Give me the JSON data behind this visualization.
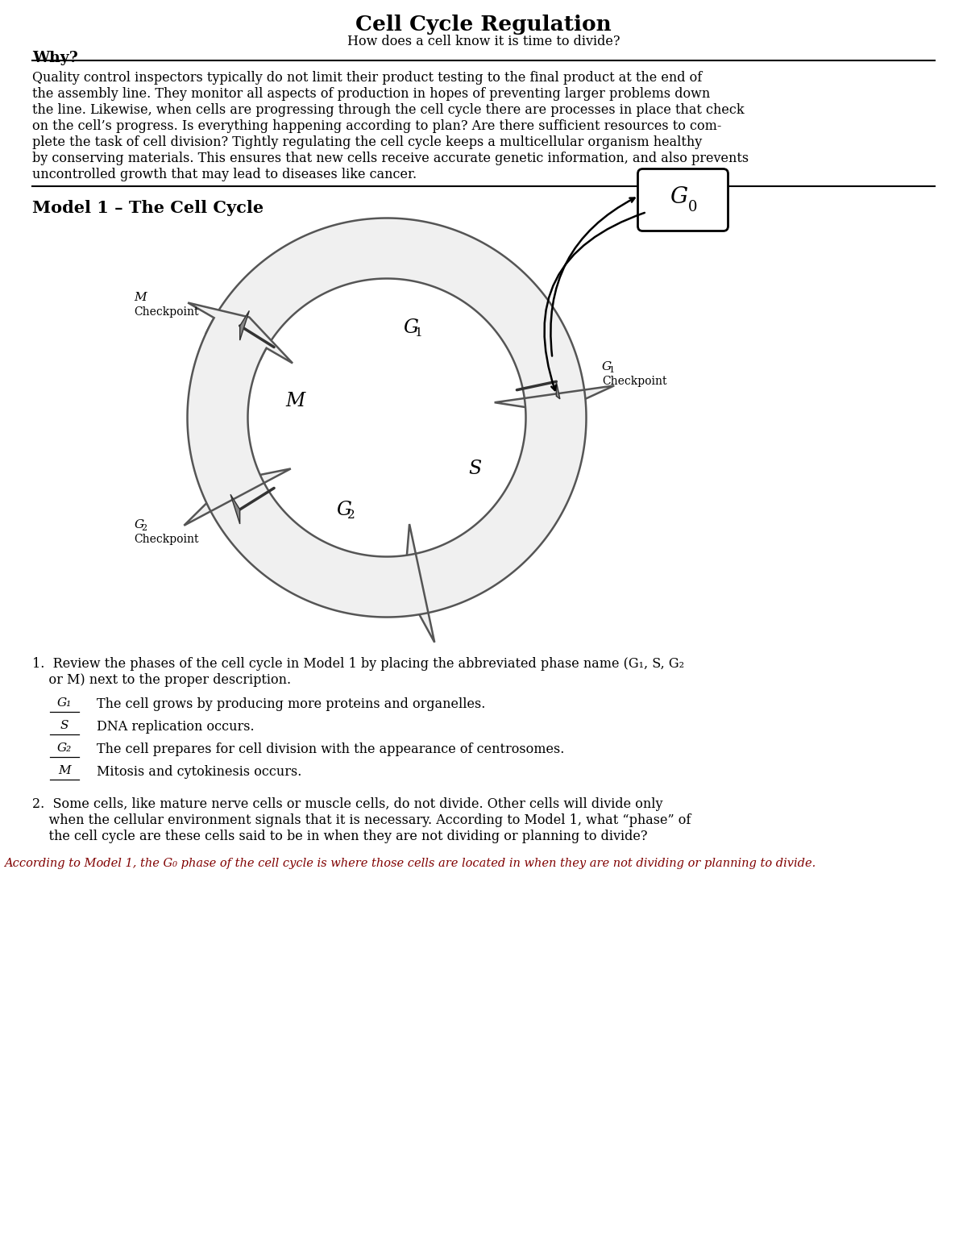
{
  "title": "Cell Cycle Regulation",
  "subtitle": "How does a cell know it is time to divide?",
  "why_label": "Why?",
  "why_text": "Quality control inspectors typically do not limit their product testing to the final product at the end of\nthe assembly line. They monitor all aspects of production in hopes of preventing larger problems down\nthe line. Likewise, when cells are progressing through the cell cycle there are processes in place that check\non the cell’s progress. Is everything happening according to plan? Are there sufficient resources to com-\nplete the task of cell division? Tightly regulating the cell cycle keeps a multicellular organism healthy\nby conserving materials. This ensures that new cells receive accurate genetic information, and also prevents\nuncontrolled growth that may lead to diseases like cancer.",
  "model_title": "Model 1 – The Cell Cycle",
  "q1_text_line1": "1.  Review the phases of the cell cycle in Model 1 by placing the abbreviated phase name (G₁, S, G₂",
  "q1_text_line2": "    or M) next to the proper description.",
  "q1_items": [
    {
      "label": "G₁",
      "description": "The cell grows by producing more proteins and organelles."
    },
    {
      "label": "S",
      "description": "DNA replication occurs."
    },
    {
      "label": "G₂",
      "description": "The cell prepares for cell division with the appearance of centrosomes."
    },
    {
      "label": "M",
      "description": "Mitosis and cytokinesis occurs."
    }
  ],
  "q2_text_line1": "2.  Some cells, like mature nerve cells or muscle cells, do not divide. Other cells will divide only",
  "q2_text_line2": "    when the cellular environment signals that it is necessary. According to Model 1, what “phase” of",
  "q2_text_line3": "    the cell cycle are these cells said to be in when they are not dividing or planning to divide?",
  "answer_text": "According to Model 1, the G₀ phase of the cell cycle is where those cells are located in when they are not dividing or planning to divide.",
  "bg_color": "#ffffff",
  "text_color": "#000000",
  "answer_color": "#800000",
  "phase_fill": "#f0f0f0",
  "phase_edge": "#555555",
  "flag_color": "#888888"
}
